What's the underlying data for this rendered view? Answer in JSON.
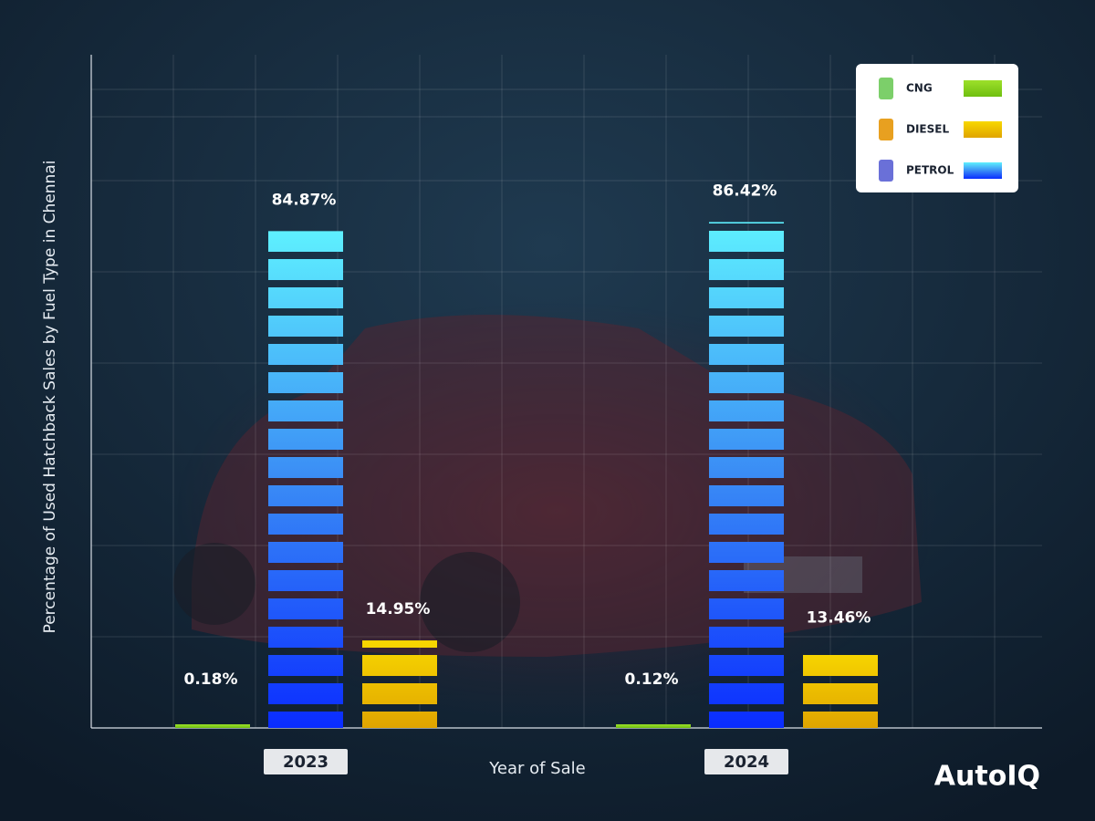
{
  "chart_data": {
    "type": "bar",
    "y_label": "Percentage of Used Hatchback Sales by Fuel Type in Chennai",
    "x_label": "Year of Sale",
    "brand": "AutoIQ",
    "categories": [
      "2023",
      "2024"
    ],
    "series": [
      {
        "name": "CNG",
        "color": "#8ed61a",
        "values": [
          0.18,
          0.12
        ],
        "value_labels": [
          "0.18%",
          "0.12%"
        ]
      },
      {
        "name": "DIESEL",
        "color": "#f2c500",
        "values": [
          14.95,
          13.46
        ],
        "value_labels": [
          "14.95%",
          "13.46%"
        ]
      },
      {
        "name": "PETROL",
        "color": "#2a5cff",
        "values": [
          84.87,
          86.42
        ],
        "value_labels": [
          "84.87%",
          "86.42%"
        ]
      }
    ],
    "ylim": [
      0,
      115
    ],
    "grid": true,
    "legend": "top-right"
  }
}
